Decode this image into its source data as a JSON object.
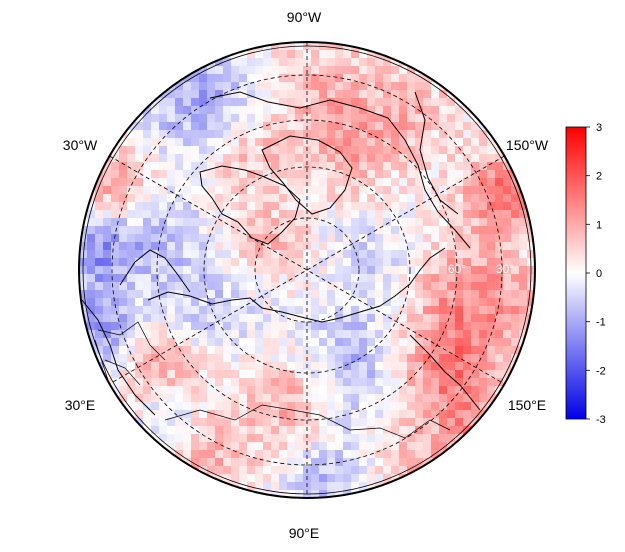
{
  "map": {
    "projection": "north polar stereographic",
    "graticule_style": "dashed",
    "longitude_labels": {
      "top": "90°W",
      "upper_left": "30°W",
      "upper_right": "150°W",
      "lower_left": "30°E",
      "lower_right": "150°E",
      "bottom": "90°E"
    },
    "latitude_labels": [
      "60°",
      "30°"
    ]
  },
  "colorbar": {
    "min": -3,
    "max": 3,
    "ticks": [
      "3",
      "2",
      "1",
      "0",
      "-1",
      "-2",
      "-3"
    ],
    "colors": {
      "low": "#0000e6",
      "mid": "#ffffff",
      "high": "#ff0000"
    }
  }
}
